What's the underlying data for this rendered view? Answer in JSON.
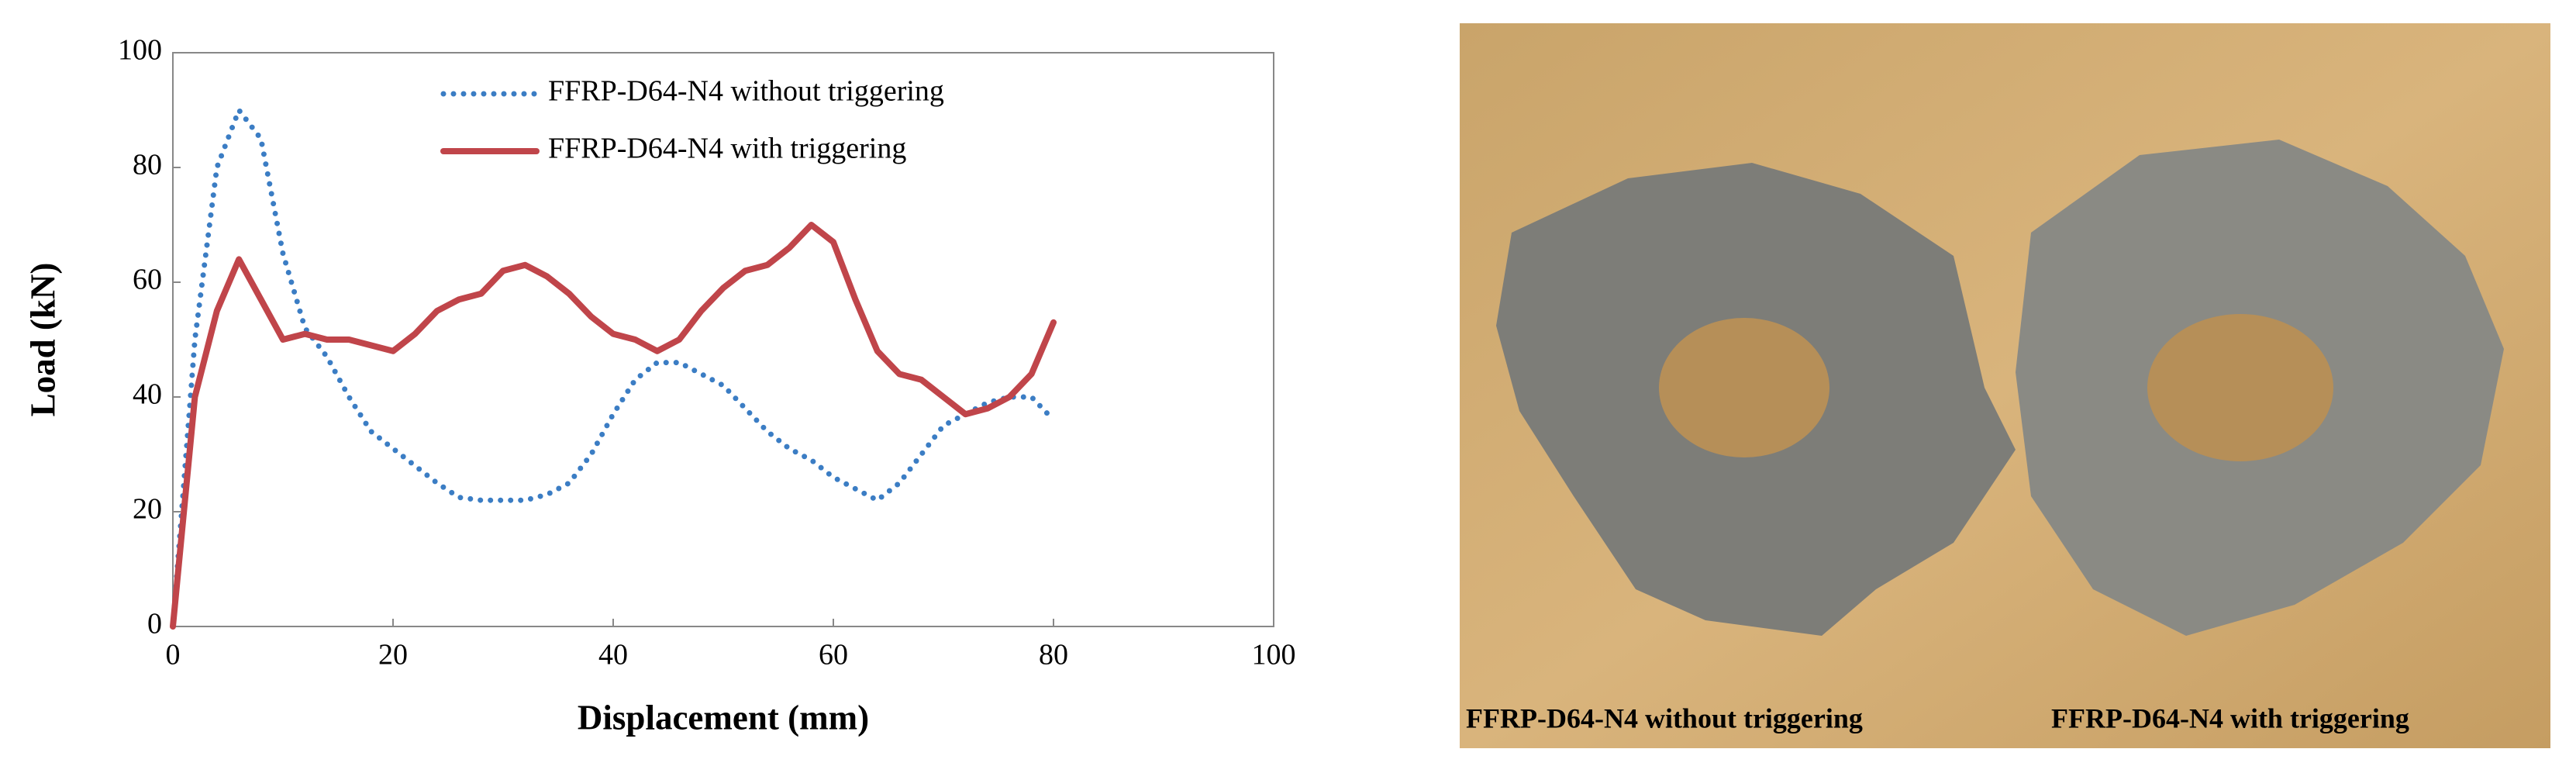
{
  "chart_data": {
    "type": "line",
    "xlabel": "Displacement (mm)",
    "ylabel": "Load (kN)",
    "x": [
      0,
      2,
      4,
      6,
      8,
      10,
      12,
      14,
      16,
      18,
      20,
      22,
      24,
      26,
      28,
      30,
      32,
      34,
      36,
      38,
      40,
      42,
      44,
      46,
      48,
      50,
      52,
      54,
      56,
      58,
      60,
      62,
      64,
      66,
      68,
      70,
      72,
      74,
      76,
      78,
      80
    ],
    "series": [
      {
        "name": "FFRP-D64-N4 without triggering",
        "color": "#3b7dc4",
        "style": "dotted",
        "values": [
          0,
          50,
          80,
          90,
          85,
          65,
          52,
          47,
          40,
          34,
          31,
          28,
          25,
          22.5,
          22,
          22,
          22,
          23,
          25,
          30,
          37,
          43,
          46,
          46,
          44,
          42,
          38,
          34,
          31,
          29,
          26,
          24,
          22,
          25,
          30,
          35,
          37,
          39,
          40,
          40,
          36
        ]
      },
      {
        "name": "FFRP-D64-N4 with triggering",
        "color": "#c0454a",
        "style": "solid",
        "values": [
          0,
          40,
          55,
          64,
          57,
          50,
          51,
          50,
          50,
          49,
          48,
          51,
          55,
          57,
          58,
          62,
          63,
          61,
          58,
          54,
          51,
          50,
          48,
          50,
          55,
          59,
          62,
          63,
          66,
          70,
          67,
          57,
          48,
          44,
          43,
          40,
          37,
          38,
          40,
          44,
          53
        ]
      }
    ],
    "xlim": [
      0,
      100
    ],
    "ylim": [
      0,
      100
    ],
    "xticks": [
      0,
      20,
      40,
      60,
      80,
      100
    ],
    "yticks": [
      0,
      20,
      40,
      60,
      80,
      100
    ],
    "legend": "upper-center"
  },
  "photo": {
    "captions": [
      "FFRP-D64-N4 without triggering",
      "FFRP-D64-N4 with triggering"
    ]
  }
}
